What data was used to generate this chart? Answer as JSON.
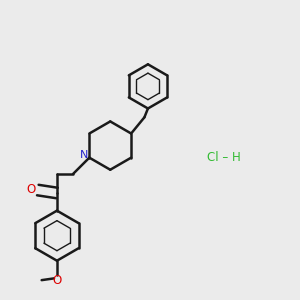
{
  "bg_color": "#ebebeb",
  "bond_color": "#1a1a1a",
  "N_color": "#2222cc",
  "O_color": "#dd0000",
  "HCl_color": "#33bb33",
  "bond_lw": 1.8,
  "inner_lw": 1.0,
  "N_label": "N",
  "O_label": "O",
  "HCl_text": "Cl – H",
  "methoxy_label": "O"
}
